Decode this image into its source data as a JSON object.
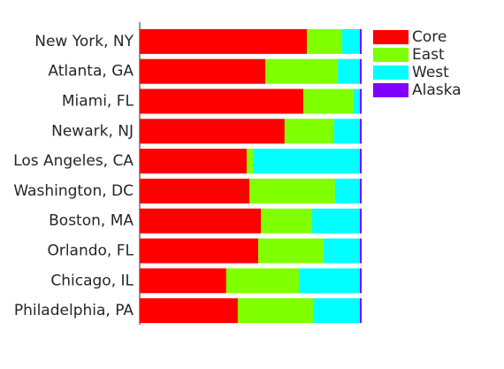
{
  "chart_data": {
    "type": "stacked-barh",
    "categories": [
      "New York, NY",
      "Atlanta, GA",
      "Miami, FL",
      "Newark, NJ",
      "Los Angeles, CA",
      "Washington, DC",
      "Boston, MA",
      "Orlando, FL",
      "Chicago, IL",
      "Philadelphia, PA"
    ],
    "series": [
      {
        "name": "Core",
        "color": "#ff0000",
        "values": [
          75.3,
          56.6,
          73.7,
          65.3,
          48.2,
          49.4,
          54.6,
          53.4,
          39.0,
          44.2
        ]
      },
      {
        "name": "East",
        "color": "#80ff00",
        "values": [
          15.9,
          32.7,
          22.7,
          22.3,
          3.2,
          38.6,
          23.1,
          29.5,
          32.7,
          33.9
        ]
      },
      {
        "name": "West",
        "color": "#00ffff",
        "values": [
          8.0,
          9.9,
          2.8,
          11.6,
          47.8,
          11.2,
          21.5,
          16.3,
          27.5,
          21.1
        ]
      },
      {
        "name": "Alaska",
        "color": "#8000ff",
        "values": [
          0.8,
          0.8,
          0.8,
          0.8,
          0.8,
          0.8,
          0.8,
          0.8,
          0.8,
          0.8
        ]
      }
    ],
    "xlim": [
      0,
      100
    ],
    "legend": "upper-right"
  }
}
